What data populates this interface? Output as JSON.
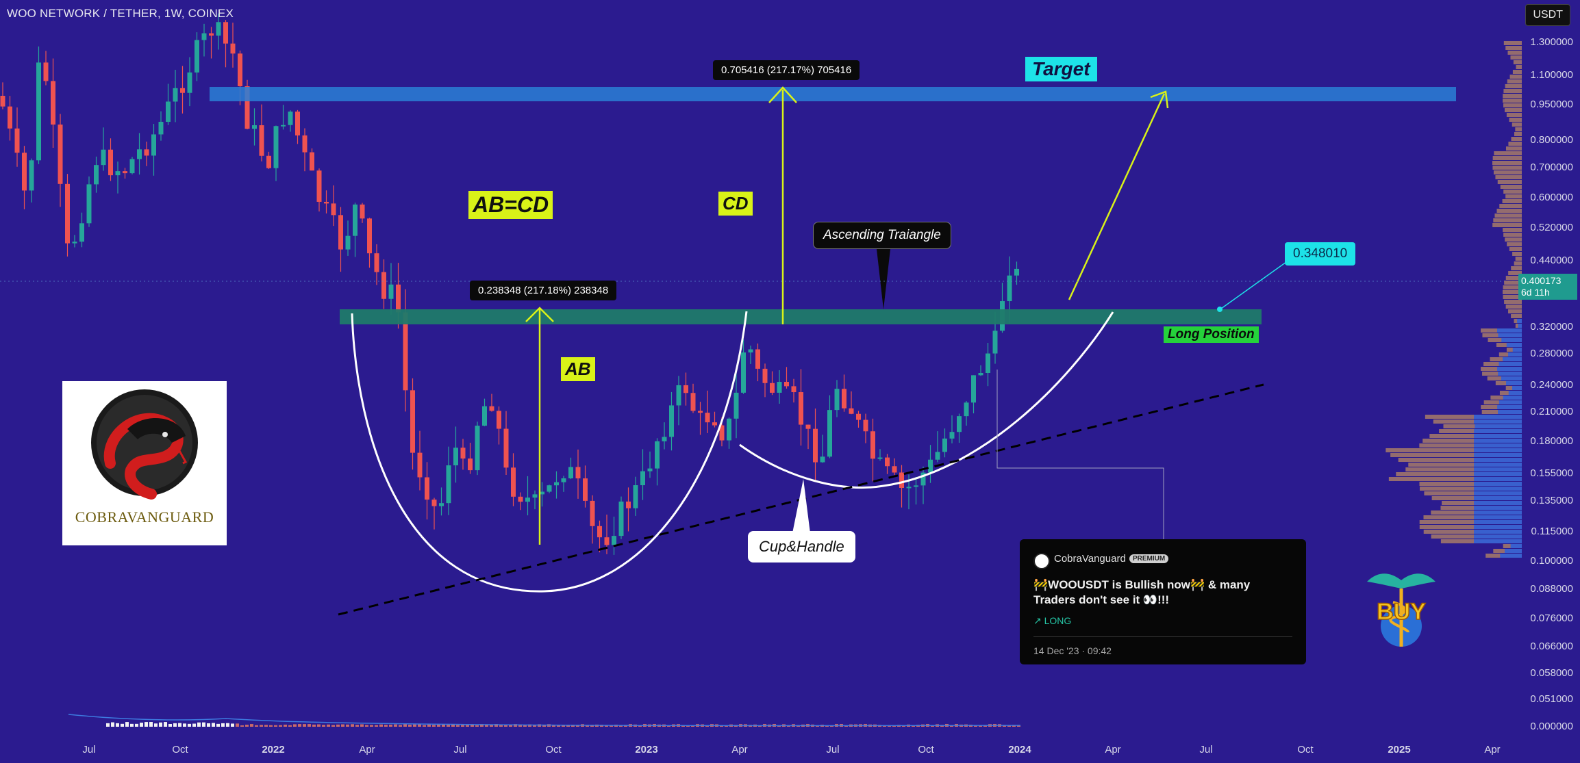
{
  "header": {
    "symbol": "WOO NETWORK / TETHER, 1W, COINEX",
    "currency": "USDT"
  },
  "y_axis": {
    "ticks": [
      "1.300000",
      "1.100000",
      "0.950000",
      "0.800000",
      "0.700000",
      "0.600000",
      "0.520000",
      "0.440000",
      "0.320000",
      "0.280000",
      "0.240000",
      "0.210000",
      "0.180000",
      "0.155000",
      "0.135000",
      "0.115000",
      "0.100000",
      "0.088000",
      "0.076000",
      "0.066000",
      "0.058000",
      "0.051000",
      "0.000000"
    ],
    "last_price": "0.400173",
    "countdown": "6d 11h"
  },
  "x_axis": {
    "ticks": [
      {
        "label": "Jul",
        "bold": false
      },
      {
        "label": "Oct",
        "bold": false
      },
      {
        "label": "2022",
        "bold": true
      },
      {
        "label": "Apr",
        "bold": false
      },
      {
        "label": "Jul",
        "bold": false
      },
      {
        "label": "Oct",
        "bold": false
      },
      {
        "label": "2023",
        "bold": true
      },
      {
        "label": "Apr",
        "bold": false
      },
      {
        "label": "Jul",
        "bold": false
      },
      {
        "label": "Oct",
        "bold": false
      },
      {
        "label": "2024",
        "bold": true
      },
      {
        "label": "Apr",
        "bold": false
      },
      {
        "label": "Jul",
        "bold": false
      },
      {
        "label": "Oct",
        "bold": false
      },
      {
        "label": "2025",
        "bold": true
      },
      {
        "label": "Apr",
        "bold": false
      }
    ]
  },
  "annotations": {
    "abcd": "AB=CD",
    "ab": "AB",
    "cd": "CD",
    "measure_ab": "0.238348 (217.18%) 238348",
    "measure_cd": "0.705416 (217.17%) 705416",
    "ascending": "Ascending Traiangle",
    "cup": "Cup&Handle",
    "target": "Target",
    "long_position": "Long Position",
    "price_label": "0.348010"
  },
  "logo": {
    "text": "COBRAVANGUARD"
  },
  "idea_card": {
    "author": "CobraVanguard",
    "badge": "PREMIUM",
    "message": "🚧WOOUSDT is Bullish now🚧 & many Traders don't see it 👀!!!",
    "direction": "↗ LONG",
    "date": "14 Dec '23 · 09:42"
  },
  "buy_icon": {
    "text": "BUY"
  },
  "colors": {
    "background": "#2b1b8f",
    "up_candle": "#26a69a",
    "down_candle": "#ef5350",
    "target_zone": "#2a7fd6",
    "support_zone": "#1f7a6a",
    "accent_yellow": "#d9f218",
    "accent_cyan": "#1de2e8"
  }
}
